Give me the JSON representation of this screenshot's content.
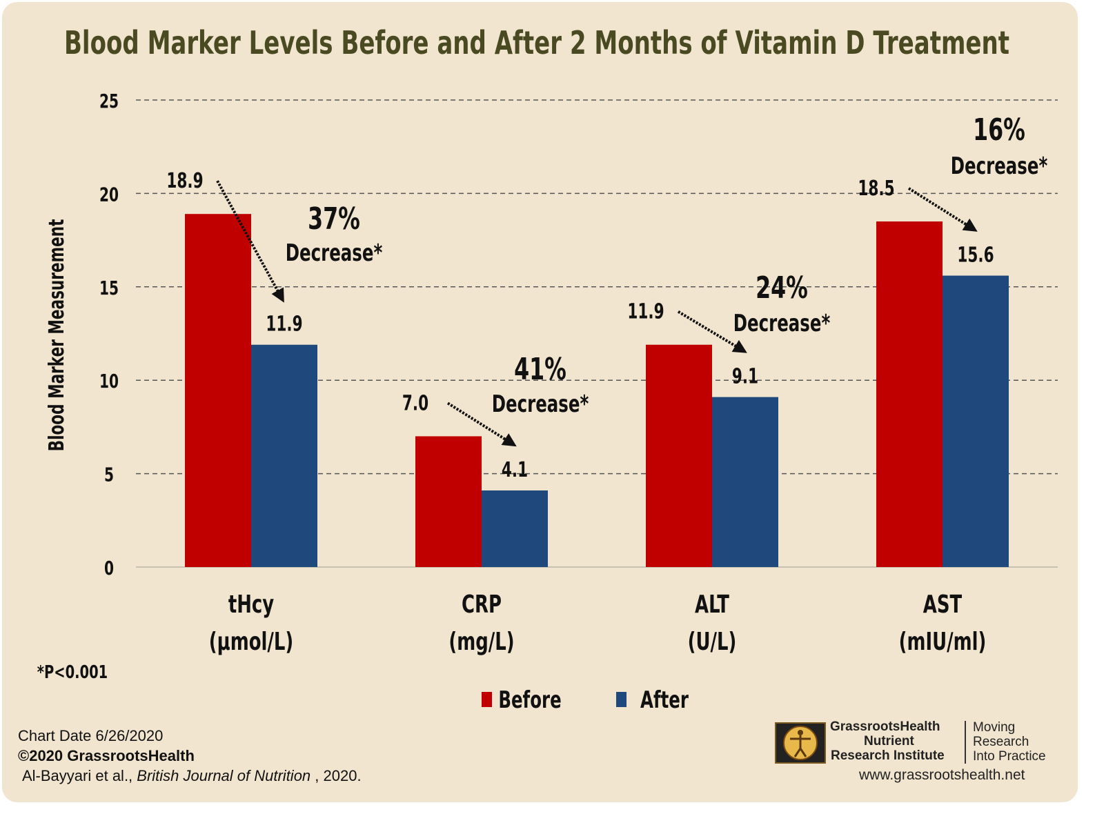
{
  "chart_data": {
    "type": "bar",
    "title": "Blood Marker Levels Before and After 2 Months of Vitamin D Treatment",
    "ylabel": "Blood Marker Measurement",
    "ylim": [
      0,
      25
    ],
    "yticks": [
      "0",
      "5",
      "10",
      "15",
      "20",
      "25"
    ],
    "ytick_values": [
      0,
      5,
      10,
      15,
      20,
      25
    ],
    "grid": true,
    "legend_position": "bottom",
    "categories": [
      "tHcy",
      "CRP",
      "ALT",
      "AST"
    ],
    "category_units": [
      "(μmol/L)",
      "(mg/L)",
      "(U/L)",
      "(mIU/ml)"
    ],
    "series": [
      {
        "name": "Before",
        "color": "#c00000",
        "values": [
          18.9,
          7.0,
          11.9,
          18.5
        ],
        "labels": [
          "18.9",
          "7.0",
          "11.9",
          "18.5"
        ]
      },
      {
        "name": "After",
        "color": "#1f497d",
        "values": [
          11.9,
          4.1,
          9.1,
          15.6
        ],
        "labels": [
          "11.9",
          "4.1",
          "9.1",
          "15.6"
        ]
      }
    ],
    "annotations": [
      {
        "percent": "37%",
        "text": "Decrease*"
      },
      {
        "percent": "41%",
        "text": "Decrease*"
      },
      {
        "percent": "24%",
        "text": "Decrease*"
      },
      {
        "percent": "16%",
        "text": "Decrease*"
      }
    ],
    "footnote": "*P<0.001"
  },
  "colors": {
    "title": "#4a4a22",
    "background": "#f1e5cf",
    "grid": "#555555"
  },
  "footer": {
    "chart_date": "Chart Date 6/26/2020",
    "copyright": "©2020 GrassrootsHealth",
    "citation_authors": "Al-Bayyari  et al., ",
    "citation_journal": "British Journal of Nutrition",
    "citation_year": " , 2020."
  },
  "branding": {
    "org_line1": "GrassrootsHealth",
    "org_line2": "Nutrient",
    "org_line3": "Research Institute",
    "tagline1": "Moving",
    "tagline2": "Research",
    "tagline3": "Into Practice",
    "url": "www.grassrootshealth.net",
    "logo_icon": "vitruvian-man-icon"
  }
}
